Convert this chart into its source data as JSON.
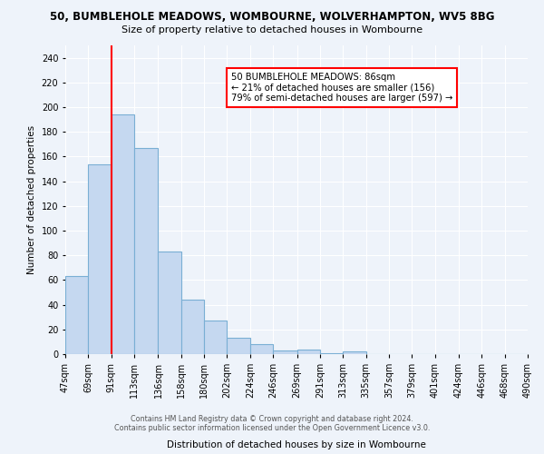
{
  "title1": "50, BUMBLEHOLE MEADOWS, WOMBOURNE, WOLVERHAMPTON, WV5 8BG",
  "title2": "Size of property relative to detached houses in Wombourne",
  "xlabel": "Distribution of detached houses by size in Wombourne",
  "ylabel": "Number of detached properties",
  "bar_data": [
    [
      47,
      69,
      63
    ],
    [
      69,
      91,
      154
    ],
    [
      91,
      113,
      194
    ],
    [
      113,
      136,
      167
    ],
    [
      136,
      158,
      83
    ],
    [
      158,
      180,
      44
    ],
    [
      180,
      202,
      27
    ],
    [
      202,
      224,
      13
    ],
    [
      224,
      246,
      8
    ],
    [
      246,
      269,
      3
    ],
    [
      269,
      291,
      4
    ],
    [
      291,
      313,
      1
    ],
    [
      313,
      335,
      2
    ],
    [
      335,
      357,
      0
    ],
    [
      357,
      379,
      0
    ],
    [
      379,
      401,
      0
    ],
    [
      401,
      424,
      0
    ],
    [
      424,
      446,
      0
    ],
    [
      446,
      468,
      0
    ],
    [
      468,
      490,
      0
    ]
  ],
  "bar_color": "#c5d8f0",
  "bar_edge_color": "#7aafd4",
  "red_line_x": 91,
  "annotation_text": "50 BUMBLEHOLE MEADOWS: 86sqm\n← 21% of detached houses are smaller (156)\n79% of semi-detached houses are larger (597) →",
  "ylim": [
    0,
    250
  ],
  "yticks": [
    0,
    20,
    40,
    60,
    80,
    100,
    120,
    140,
    160,
    180,
    200,
    220,
    240
  ],
  "bin_labels": [
    "47sqm",
    "69sqm",
    "91sqm",
    "113sqm",
    "136sqm",
    "158sqm",
    "180sqm",
    "202sqm",
    "224sqm",
    "246sqm",
    "269sqm",
    "291sqm",
    "313sqm",
    "335sqm",
    "357sqm",
    "379sqm",
    "401sqm",
    "424sqm",
    "446sqm",
    "468sqm",
    "490sqm"
  ],
  "footer1": "Contains HM Land Registry data © Crown copyright and database right 2024.",
  "footer2": "Contains public sector information licensed under the Open Government Licence v3.0.",
  "bg_color": "#eef3fa",
  "grid_color": "#ffffff"
}
